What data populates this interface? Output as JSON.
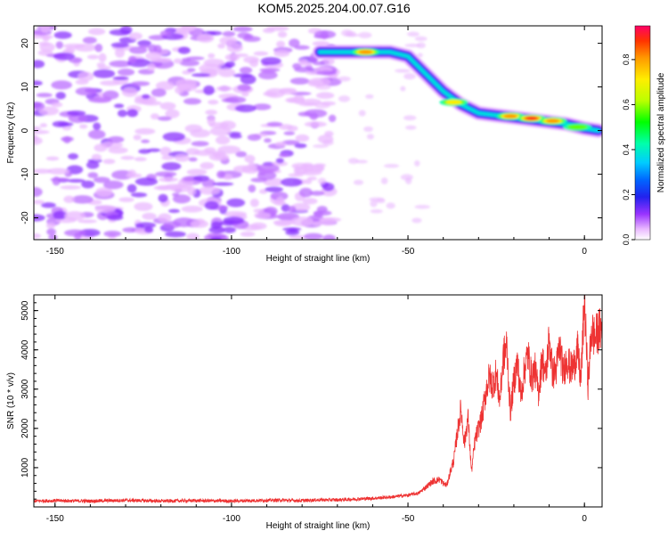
{
  "title": "KOM5.2025.204.00.07.G16",
  "chart_data": [
    {
      "type": "heatmap",
      "xlabel": "Height of straight line (km)",
      "ylabel": "Frequency (Hz)",
      "xlim": [
        -156,
        5
      ],
      "ylim": [
        -25,
        24
      ],
      "xticks": [
        -150,
        -100,
        -50,
        0
      ],
      "yticks": [
        -20,
        -10,
        0,
        10,
        20
      ],
      "colorbar": {
        "label": "Normalized spectral amplitude",
        "range": [
          0,
          0.95
        ],
        "ticks": [
          0.0,
          0.2,
          0.4,
          0.6,
          0.8
        ]
      },
      "ridge": {
        "x": [
          -75,
          -65,
          -55,
          -50,
          -45,
          -40,
          -35,
          -30,
          -25,
          -20,
          -15,
          -10,
          -5,
          0,
          4
        ],
        "y": [
          18,
          18,
          18,
          17,
          13,
          9,
          6,
          4,
          3.5,
          3,
          2.5,
          2,
          1.5,
          0.5,
          0
        ]
      },
      "ridge_peaks": [
        {
          "x": -62,
          "y": 18,
          "value": 0.85
        },
        {
          "x": -37,
          "y": 6.5,
          "value": 0.75
        },
        {
          "x": -21,
          "y": 3.3,
          "value": 0.9
        },
        {
          "x": -15,
          "y": 2.8,
          "value": 0.95
        },
        {
          "x": -9,
          "y": 2.2,
          "value": 0.85
        },
        {
          "x": -2,
          "y": 0.8,
          "value": 0.7
        }
      ],
      "noise_region": {
        "xmin": -156,
        "xmax": -75,
        "typical_value": 0.2
      }
    },
    {
      "type": "line",
      "xlabel": "Height of straight line (km)",
      "ylabel": "SNR (10 * v/v)",
      "xlim": [
        -156,
        5
      ],
      "ylim": [
        0,
        5400
      ],
      "xticks": [
        -150,
        -100,
        -50,
        0
      ],
      "yticks": [
        1000,
        2000,
        3000,
        4000,
        5000
      ],
      "color": "#ee3333",
      "series": [
        {
          "x": [
            -156,
            -150,
            -140,
            -130,
            -120,
            -110,
            -100,
            -95,
            -90,
            -85,
            -80,
            -75,
            -70,
            -65,
            -60,
            -55,
            -50,
            -47,
            -45,
            -43,
            -41,
            -40,
            -39,
            -38,
            -37,
            -36,
            -35,
            -34,
            -33,
            -32,
            -31,
            -30,
            -29,
            -28,
            -27,
            -26,
            -25,
            -24,
            -23,
            -22,
            -21,
            -20,
            -19,
            -18,
            -17,
            -16,
            -15,
            -14,
            -13,
            -12,
            -11,
            -10,
            -9,
            -8,
            -7,
            -6,
            -5,
            -4,
            -3,
            -2,
            -1,
            0,
            1,
            2,
            3,
            4
          ],
          "y": [
            150,
            160,
            150,
            170,
            150,
            160,
            150,
            160,
            170,
            170,
            160,
            180,
            180,
            200,
            220,
            250,
            300,
            350,
            500,
            650,
            700,
            600,
            550,
            900,
            1200,
            1900,
            2500,
            1600,
            2300,
            900,
            1700,
            2000,
            2300,
            2900,
            3300,
            3100,
            3400,
            2700,
            3800,
            4100,
            2400,
            3200,
            3700,
            2800,
            3500,
            3900,
            3300,
            3500,
            2900,
            3800,
            3300,
            4300,
            3400,
            3500,
            4100,
            3400,
            3800,
            3500,
            3600,
            4000,
            3200,
            5300,
            3100,
            4500,
            4300,
            4500
          ]
        }
      ]
    }
  ]
}
